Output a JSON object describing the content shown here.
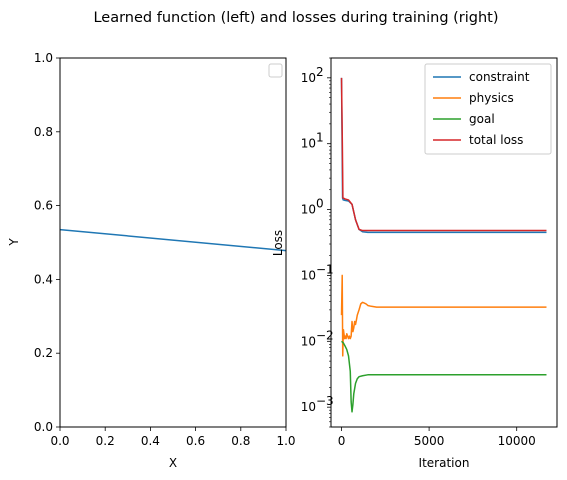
{
  "figure": {
    "suptitle": "Learned function (left) and losses during training (right)"
  },
  "chart_data": [
    {
      "type": "line",
      "title": "",
      "xlabel": "X",
      "ylabel": "Y",
      "xlim": [
        0,
        1
      ],
      "ylim": [
        0,
        1
      ],
      "xticks": [
        "0.0",
        "0.2",
        "0.4",
        "0.6",
        "0.8",
        "1.0"
      ],
      "yticks": [
        "0.0",
        "0.2",
        "0.4",
        "0.6",
        "0.8",
        "1.0"
      ],
      "legend": {
        "placement": "upper-right",
        "entries": []
      },
      "series": [
        {
          "color": "#1f77b4",
          "x": [
            0,
            1
          ],
          "y": [
            0.535,
            0.478
          ]
        }
      ]
    },
    {
      "type": "line",
      "title": "",
      "xlabel": "Iteration",
      "ylabel": "Loss",
      "yscale": "log",
      "xlim": [
        -600,
        12300
      ],
      "ylim": [
        0.0005,
        200
      ],
      "xticks": [
        "0",
        "5000",
        "10000"
      ],
      "ytick_exponents": [
        -3,
        -2,
        -1,
        0,
        1,
        2
      ],
      "legend": {
        "placement": "upper-right"
      },
      "series": [
        {
          "name": "constraint",
          "color": "#1f77b4",
          "x": [
            0,
            60,
            100,
            200,
            400,
            600,
            800,
            1000,
            1200,
            1500,
            2000,
            3000,
            5000,
            8000,
            11700
          ],
          "y": [
            100,
            1.5,
            1.4,
            1.38,
            1.35,
            1.2,
            0.7,
            0.5,
            0.46,
            0.45,
            0.45,
            0.45,
            0.45,
            0.45,
            0.45
          ]
        },
        {
          "name": "physics",
          "color": "#ff7f0e",
          "x": [
            0,
            40,
            70,
            90,
            110,
            140,
            180,
            220,
            260,
            300,
            350,
            400,
            450,
            500,
            550,
            600,
            650,
            700,
            750,
            800,
            850,
            900,
            1000,
            1100,
            1200,
            1300,
            1400,
            1500,
            1700,
            2000,
            3000,
            5000,
            8000,
            11700
          ],
          "y": [
            0.025,
            0.1,
            0.006,
            0.01,
            0.015,
            0.013,
            0.011,
            0.012,
            0.011,
            0.013,
            0.012,
            0.011,
            0.012,
            0.011,
            0.012,
            0.02,
            0.014,
            0.016,
            0.02,
            0.018,
            0.021,
            0.025,
            0.03,
            0.037,
            0.039,
            0.038,
            0.037,
            0.035,
            0.034,
            0.033,
            0.033,
            0.033,
            0.033,
            0.033
          ]
        },
        {
          "name": "goal",
          "color": "#2ca02c",
          "x": [
            0,
            100,
            200,
            300,
            400,
            500,
            550,
            600,
            650,
            700,
            800,
            900,
            1000,
            1200,
            1500,
            2000,
            3000,
            5000,
            8000,
            11700
          ],
          "y": [
            0.01,
            0.0095,
            0.0085,
            0.0075,
            0.006,
            0.0035,
            0.0012,
            0.00085,
            0.0011,
            0.0016,
            0.0023,
            0.0027,
            0.0029,
            0.003,
            0.0031,
            0.0031,
            0.0031,
            0.0031,
            0.0031,
            0.0031
          ]
        },
        {
          "name": "total loss",
          "color": "#d62728",
          "x": [
            0,
            50,
            80,
            100,
            200,
            400,
            600,
            800,
            1000,
            1200,
            1500,
            2000,
            3000,
            5000,
            8000,
            11700
          ],
          "y": [
            100,
            9,
            1.5,
            1.5,
            1.45,
            1.4,
            1.2,
            0.7,
            0.5,
            0.48,
            0.48,
            0.48,
            0.48,
            0.48,
            0.48,
            0.48
          ]
        }
      ]
    }
  ]
}
